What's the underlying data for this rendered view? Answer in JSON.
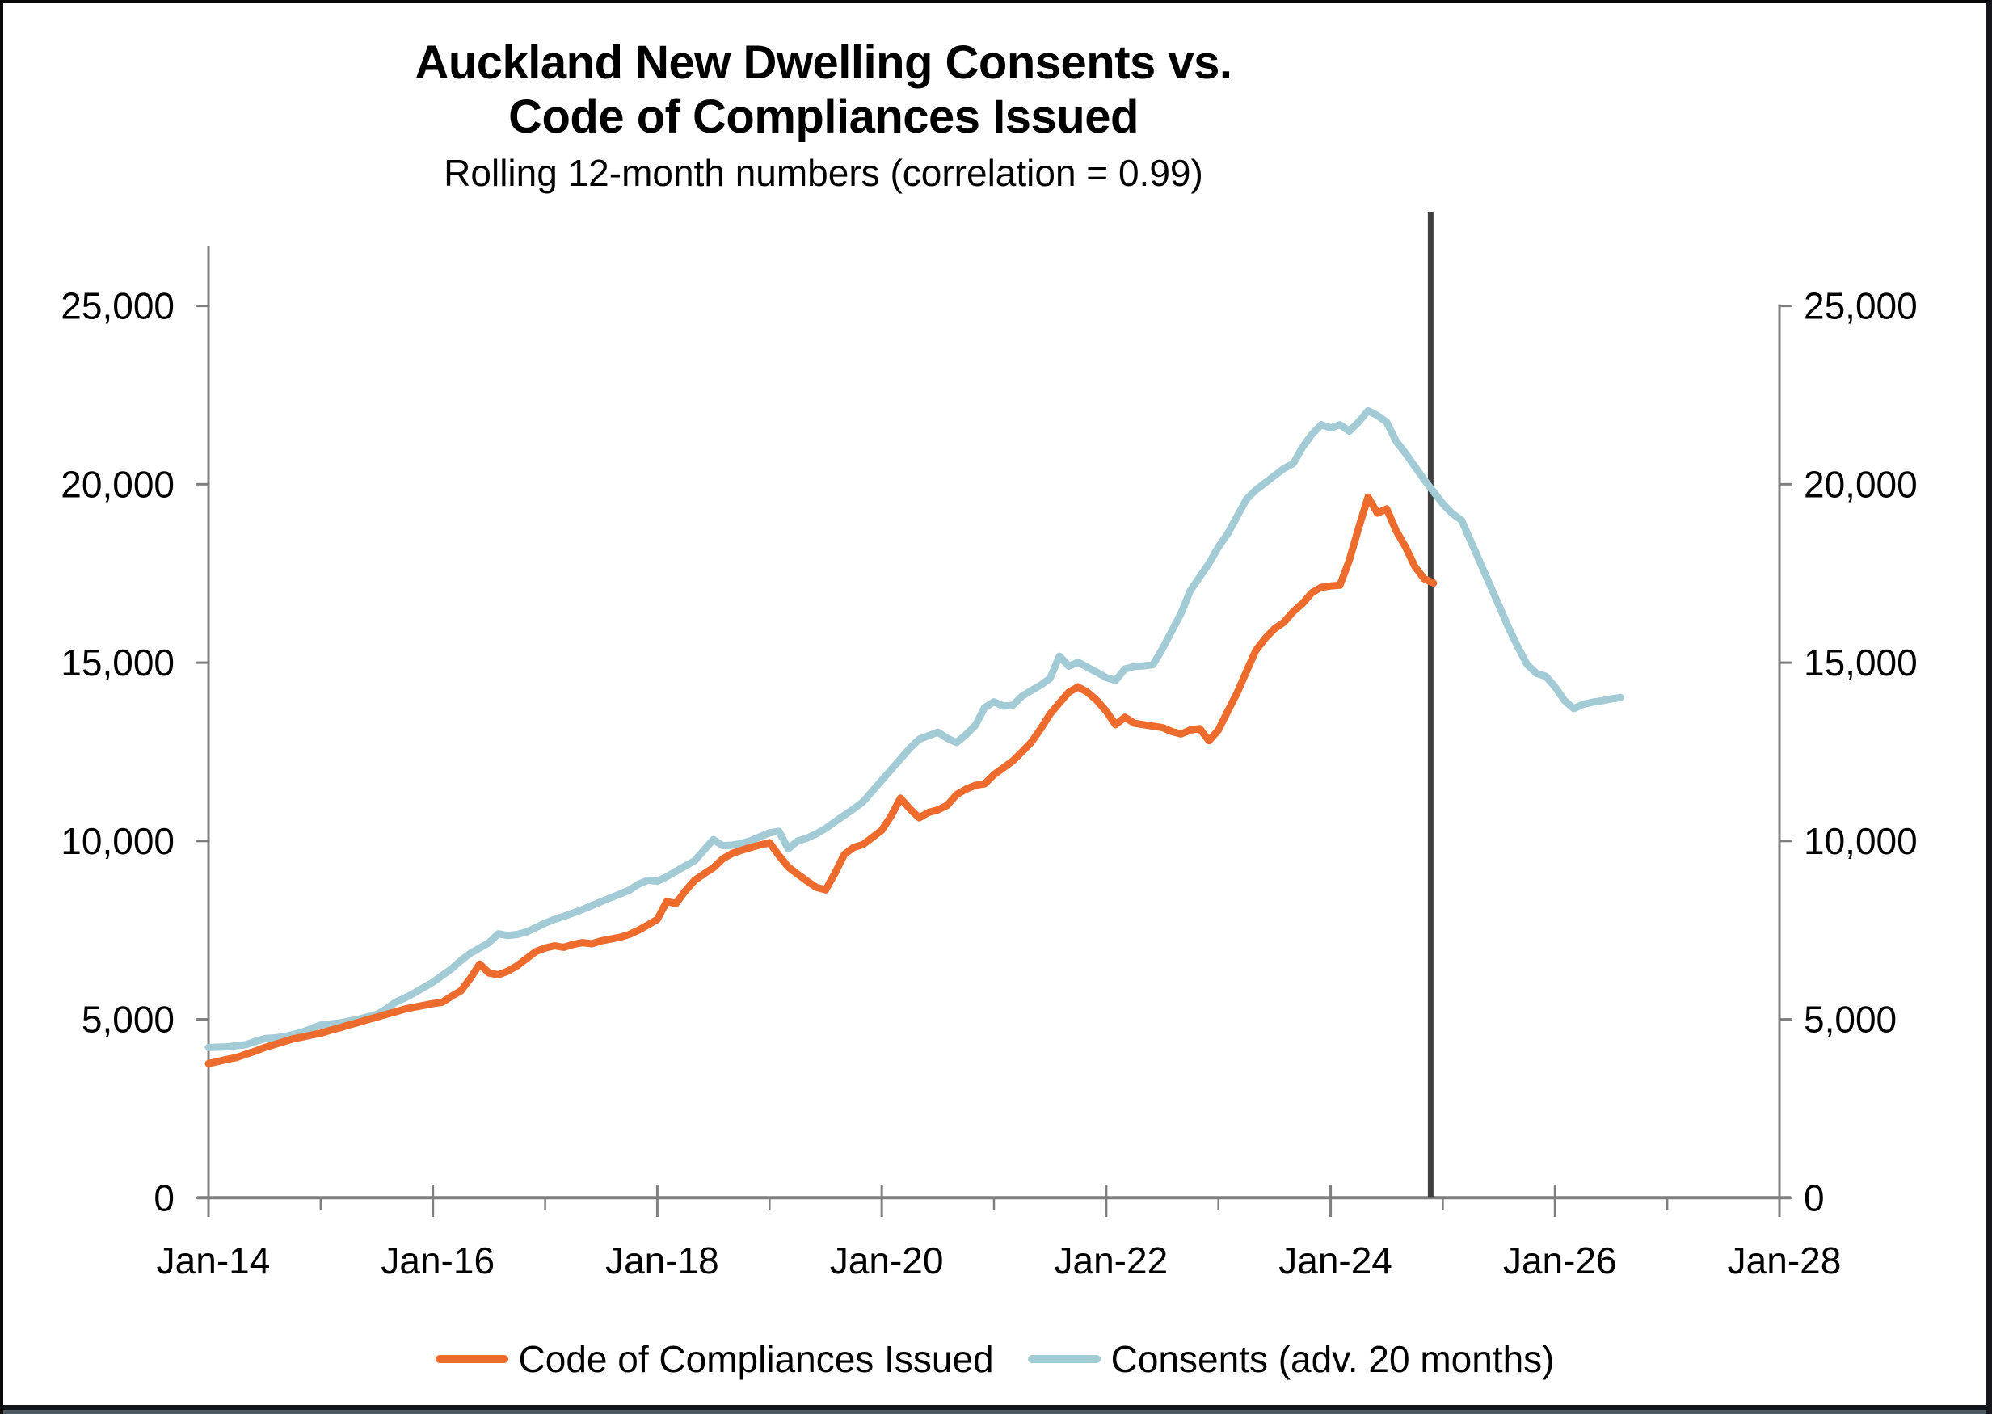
{
  "header": {
    "title_line1": "Auckland New Dwelling Consents vs.",
    "title_line2": "Code of Compliances Issued",
    "subtitle": "Rolling 12-month numbers (correlation = 0.99)"
  },
  "legend": [
    {
      "label": "Code of Compliances Issued",
      "color": "#ED6B2D"
    },
    {
      "label": "Consents (adv. 20 months)",
      "color": "#A3CBD6"
    }
  ],
  "colors": {
    "compliances_line": "#ED6B2D",
    "consents_line": "#A3CBD6",
    "marker_line": "#3F3F3F",
    "axis": "#7F7F7F",
    "text": "#000000",
    "background": "#FFFFFF"
  },
  "chart_data": {
    "type": "line",
    "title": "Auckland New Dwelling Consents vs. Code of Compliances Issued",
    "subtitle": "Rolling 12-month numbers (correlation = 0.99)",
    "legend_position": "bottom",
    "grid": false,
    "x_axis": {
      "start": "Jan-14",
      "frequency": "monthly",
      "major_tick_labels": [
        "Jan-14",
        "Jan-16",
        "Jan-18",
        "Jan-20",
        "Jan-22",
        "Jan-24",
        "Jan-26",
        "Jan-28"
      ],
      "major_tick_month_indices": [
        0,
        24,
        48,
        72,
        96,
        120,
        144,
        168
      ],
      "minor_tick_month_indices": [
        12,
        36,
        60,
        84,
        108,
        132,
        156
      ],
      "total_months_span": 168
    },
    "y_axis": {
      "min": 0,
      "max": 25000,
      "tick_interval": 5000,
      "tick_values": [
        0,
        5000,
        10000,
        15000,
        20000,
        25000
      ],
      "tick_labels": [
        "0",
        "5,000",
        "10,000",
        "15,000",
        "20,000",
        "25,000"
      ],
      "sides": "both"
    },
    "vertical_marker": {
      "month_index": 130.7,
      "approx_date": "Dec-24",
      "color": "#3F3F3F"
    },
    "series": [
      {
        "name": "Code of Compliances Issued",
        "color": "#ED6B2D",
        "start": "Jan-14",
        "end": "Dec-24",
        "start_month_index": 0,
        "values": [
          3760,
          3820,
          3880,
          3930,
          4020,
          4110,
          4210,
          4290,
          4370,
          4450,
          4500,
          4560,
          4610,
          4690,
          4760,
          4840,
          4910,
          4990,
          5060,
          5140,
          5210,
          5290,
          5340,
          5390,
          5440,
          5480,
          5650,
          5800,
          6150,
          6550,
          6300,
          6250,
          6350,
          6500,
          6700,
          6900,
          7000,
          7060,
          7020,
          7100,
          7150,
          7120,
          7200,
          7250,
          7300,
          7380,
          7500,
          7650,
          7800,
          8300,
          8250,
          8600,
          8900,
          9080,
          9250,
          9500,
          9650,
          9740,
          9820,
          9890,
          9950,
          9590,
          9270,
          9070,
          8880,
          8700,
          8630,
          9100,
          9630,
          9820,
          9900,
          10100,
          10300,
          10700,
          11200,
          10900,
          10650,
          10800,
          10870,
          11000,
          11300,
          11450,
          11560,
          11600,
          11860,
          12050,
          12240,
          12500,
          12770,
          13150,
          13560,
          13870,
          14170,
          14320,
          14170,
          13940,
          13640,
          13260,
          13470,
          13300,
          13260,
          13220,
          13180,
          13070,
          13000,
          13110,
          13150,
          12810,
          13110,
          13640,
          14150,
          14750,
          15340,
          15680,
          15950,
          16130,
          16430,
          16660,
          16960,
          17110,
          17150,
          17170,
          17870,
          18780,
          19640,
          19190,
          19310,
          18700,
          18250,
          17700,
          17350,
          17230
        ]
      },
      {
        "name": "Consents (adv. 20 months)",
        "color": "#A3CBD6",
        "start": "Jan-14",
        "end": "Aug-26",
        "start_month_index": 0,
        "values": [
          4210,
          4220,
          4230,
          4260,
          4290,
          4380,
          4460,
          4480,
          4510,
          4570,
          4640,
          4740,
          4840,
          4870,
          4900,
          4950,
          5000,
          5070,
          5140,
          5290,
          5480,
          5600,
          5740,
          5890,
          6040,
          6230,
          6420,
          6650,
          6850,
          7000,
          7150,
          7400,
          7350,
          7380,
          7450,
          7570,
          7700,
          7800,
          7890,
          7980,
          8080,
          8190,
          8300,
          8410,
          8510,
          8620,
          8790,
          8900,
          8870,
          9000,
          9150,
          9300,
          9450,
          9750,
          10040,
          9870,
          9880,
          9930,
          10010,
          10120,
          10230,
          10270,
          9780,
          10000,
          10080,
          10200,
          10350,
          10540,
          10720,
          10900,
          11100,
          11400,
          11700,
          12000,
          12300,
          12600,
          12850,
          12950,
          13050,
          12880,
          12760,
          12980,
          13240,
          13740,
          13900,
          13780,
          13800,
          14060,
          14220,
          14370,
          14560,
          15180,
          14900,
          15010,
          14870,
          14730,
          14580,
          14500,
          14820,
          14890,
          14910,
          14940,
          15380,
          15880,
          16380,
          17020,
          17400,
          17780,
          18240,
          18620,
          19100,
          19580,
          19840,
          20040,
          20240,
          20440,
          20580,
          21040,
          21400,
          21670,
          21580,
          21670,
          21490,
          21750,
          22060,
          21930,
          21740,
          21210,
          20870,
          20500,
          20130,
          19790,
          19450,
          19180,
          18990,
          18400,
          17800,
          17200,
          16600,
          16000,
          15450,
          14950,
          14700,
          14620,
          14320,
          13940,
          13710,
          13830,
          13890,
          13930,
          13980,
          14020
        ]
      }
    ]
  }
}
